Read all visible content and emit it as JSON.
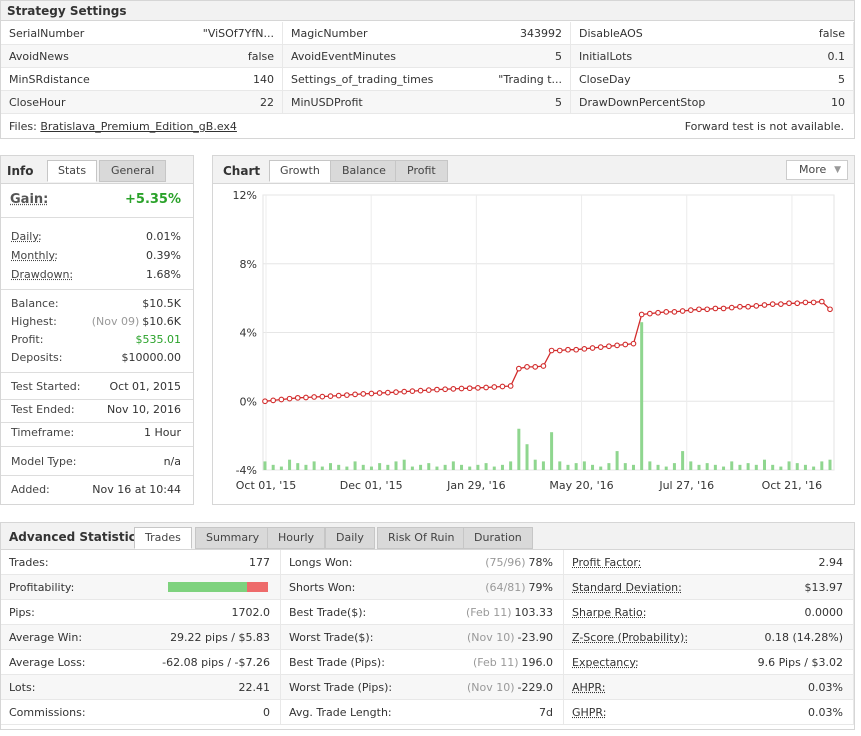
{
  "strategy": {
    "title": "Strategy Settings",
    "rows": [
      [
        [
          "SerialNumber",
          "\"ViSOf7YfN..."
        ],
        [
          "MagicNumber",
          "343992"
        ],
        [
          "DisableAOS",
          "false"
        ]
      ],
      [
        [
          "AvoidNews",
          "false"
        ],
        [
          "AvoidEventMinutes",
          "5"
        ],
        [
          "InitialLots",
          "0.1"
        ]
      ],
      [
        [
          "MinSRdistance",
          "140"
        ],
        [
          "Settings_of_trading_times",
          "\"Trading t..."
        ],
        [
          "CloseDay",
          "5"
        ]
      ],
      [
        [
          "CloseHour",
          "22"
        ],
        [
          "MinUSDProfit",
          "5"
        ],
        [
          "DrawDownPercentStop",
          "10"
        ]
      ]
    ],
    "files_label": "Files:",
    "file_name": "Bratislava_Premium_Edition_gB.ex4",
    "forward_note": "Forward test is not available."
  },
  "info": {
    "title": "Info",
    "tabs": [
      "Stats",
      "General"
    ],
    "gain_label": "Gain:",
    "gain_value": "+5.35%",
    "daily_label": "Daily:",
    "daily_value": "0.01%",
    "monthly_label": "Monthly:",
    "monthly_value": "0.39%",
    "drawdown_label": "Drawdown:",
    "drawdown_value": "1.68%",
    "balance_label": "Balance:",
    "balance_value": "$10.5K",
    "highest_label": "Highest:",
    "highest_date": "(Nov 09)",
    "highest_value": "$10.6K",
    "profit_label": "Profit:",
    "profit_value": "$535.01",
    "deposits_label": "Deposits:",
    "deposits_value": "$10000.00",
    "test_started_label": "Test Started:",
    "test_started_value": "Oct 01, 2015",
    "test_ended_label": "Test Ended:",
    "test_ended_value": "Nov 10, 2016",
    "timeframe_label": "Timeframe:",
    "timeframe_value": "1 Hour",
    "model_label": "Model Type:",
    "model_value": "n/a",
    "added_label": "Added:",
    "added_value": "Nov 16 at 10:44"
  },
  "chart_panel": {
    "title": "Chart",
    "tabs": [
      "Growth",
      "Balance",
      "Profit"
    ],
    "more_label": "More",
    "more_caret": "▼"
  },
  "chart_data": {
    "type": "line",
    "y_ticks": [
      "12%",
      "8%",
      "4%",
      "0%",
      "-4%"
    ],
    "ylim": [
      -4,
      12
    ],
    "x_ticks": [
      "Oct 01, '15",
      "Dec 01, '15",
      "Jan 29, '16",
      "May 20, '16",
      "Jul 27, '16",
      "Oct 21, '16"
    ],
    "growth_color": "#d22b2b",
    "volume_color": "#8fd68f",
    "series": [
      {
        "values": [
          0.0,
          0.05,
          0.1,
          0.15,
          0.2,
          0.22,
          0.25,
          0.27,
          0.3,
          0.33,
          0.36,
          0.4,
          0.43,
          0.45,
          0.48,
          0.5,
          0.53,
          0.56,
          0.59,
          0.62,
          0.65,
          0.68,
          0.7,
          0.72,
          0.74,
          0.76,
          0.78,
          0.8,
          0.83,
          0.86,
          0.89,
          1.9,
          2.0,
          2.0,
          2.05,
          2.95,
          2.95,
          3.0,
          3.0,
          3.05,
          3.1,
          3.15,
          3.2,
          3.25,
          3.3,
          3.35,
          5.05,
          5.1,
          5.15,
          5.2,
          5.2,
          5.25,
          5.3,
          5.35,
          5.35,
          5.4,
          5.4,
          5.45,
          5.5,
          5.5,
          5.55,
          5.6,
          5.65,
          5.65,
          5.7,
          5.7,
          5.75,
          5.75,
          5.8,
          5.35
        ]
      }
    ],
    "volume": [
      0.5,
      0.3,
      0.2,
      0.6,
      0.4,
      0.3,
      0.5,
      0.2,
      0.4,
      0.3,
      0.2,
      0.5,
      0.3,
      0.2,
      0.4,
      0.3,
      0.5,
      0.6,
      0.2,
      0.3,
      0.4,
      0.2,
      0.3,
      0.5,
      0.3,
      0.2,
      0.3,
      0.4,
      0.2,
      0.3,
      0.5,
      2.4,
      1.5,
      0.6,
      0.5,
      2.2,
      0.5,
      0.3,
      0.4,
      0.5,
      0.3,
      0.2,
      0.4,
      1.1,
      0.4,
      0.3,
      8.6,
      0.5,
      0.3,
      0.2,
      0.4,
      1.1,
      0.5,
      0.3,
      0.4,
      0.3,
      0.2,
      0.5,
      0.3,
      0.4,
      0.3,
      0.6,
      0.3,
      0.2,
      0.5,
      0.4,
      0.3,
      0.2,
      0.5,
      0.6
    ]
  },
  "advanced": {
    "title": "Advanced Statistics",
    "tabs": [
      "Trades",
      "Summary",
      "Hourly",
      "Daily",
      "Risk Of Ruin",
      "Duration"
    ],
    "profitability_win_fraction": 0.79,
    "rows": [
      [
        {
          "k": "Trades:",
          "v": "177"
        },
        {
          "k": "Longs Won:",
          "m": "(75/96)",
          "v": "78%"
        },
        {
          "k": "Profit Factor:",
          "v": "2.94",
          "u": true
        }
      ],
      [
        {
          "k": "Profitability:",
          "bar": true
        },
        {
          "k": "Shorts Won:",
          "m": "(64/81)",
          "v": "79%"
        },
        {
          "k": "Standard Deviation:",
          "v": "$13.97",
          "u": true
        }
      ],
      [
        {
          "k": "Pips:",
          "v": "1702.0"
        },
        {
          "k": "Best Trade($):",
          "m": "(Feb 11)",
          "v": "103.33"
        },
        {
          "k": "Sharpe Ratio:",
          "v": "0.0000",
          "u": true
        }
      ],
      [
        {
          "k": "Average Win:",
          "v": "29.22 pips / $5.83"
        },
        {
          "k": "Worst Trade($):",
          "m": "(Nov 10)",
          "v": "-23.90"
        },
        {
          "k": "Z-Score (Probability):",
          "v": "0.18 (14.28%)",
          "u": true
        }
      ],
      [
        {
          "k": "Average Loss:",
          "v": "-62.08 pips / -$7.26"
        },
        {
          "k": "Best Trade (Pips):",
          "m": "(Feb 11)",
          "v": "196.0"
        },
        {
          "k": "Expectancy:",
          "v": "9.6 Pips / $3.02",
          "u": true
        }
      ],
      [
        {
          "k": "Lots:",
          "v": "22.41"
        },
        {
          "k": "Worst Trade (Pips):",
          "m": "(Nov 10)",
          "v": "-229.0"
        },
        {
          "k": "AHPR:",
          "v": "0.03%",
          "u": true
        }
      ],
      [
        {
          "k": "Commissions:",
          "v": "0"
        },
        {
          "k": "Avg. Trade Length:",
          "v": "7d"
        },
        {
          "k": "GHPR:",
          "v": "0.03%",
          "u": true
        }
      ]
    ]
  }
}
